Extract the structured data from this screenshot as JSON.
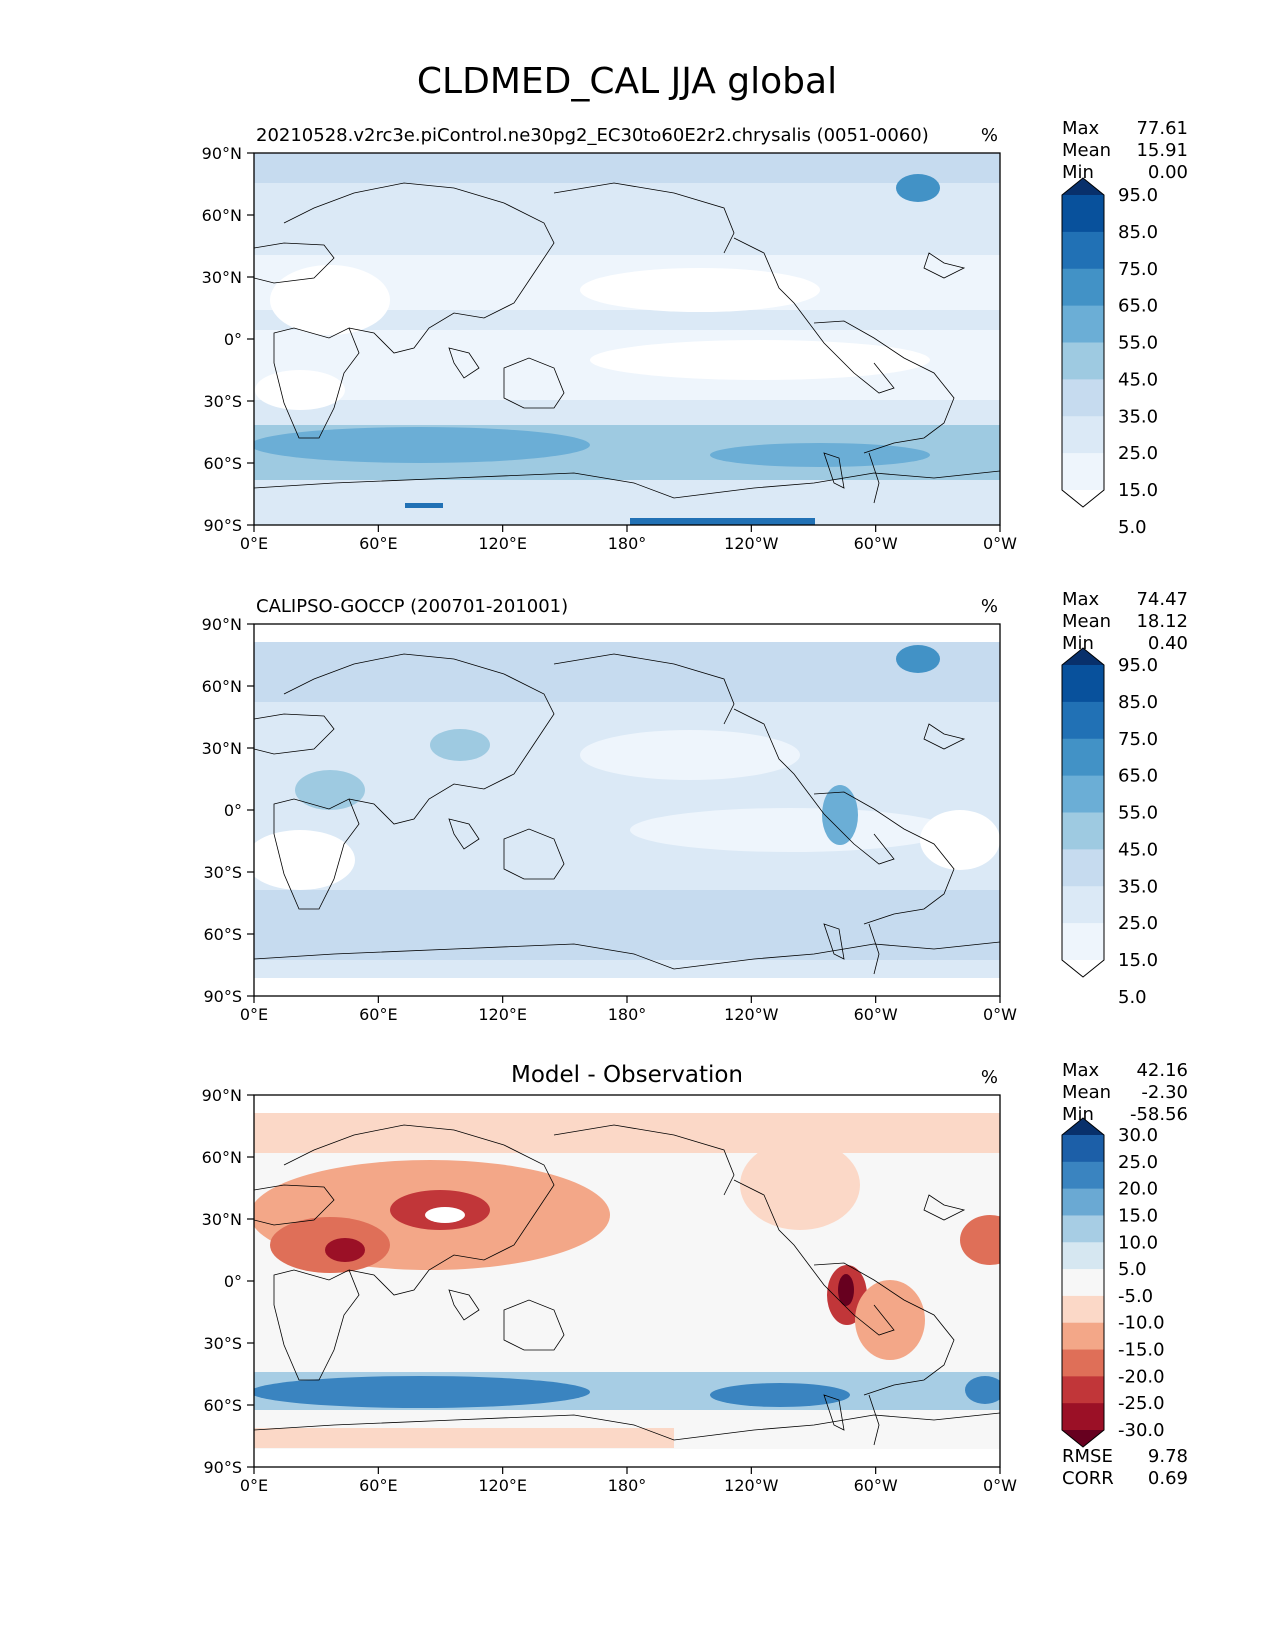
{
  "title": "CLDMED_CAL JJA global",
  "x_ticks": [
    "0°E",
    "60°E",
    "120°E",
    "180°",
    "120°W",
    "60°W",
    "0°W"
  ],
  "y_ticks": [
    "90°N",
    "60°N",
    "30°N",
    "0°",
    "30°S",
    "60°S",
    "90°S"
  ],
  "chart_data": [
    {
      "type": "heatmap",
      "id": "model",
      "title": "",
      "subtitle_left": "20210528.v2rc3e.piControl.ne30pg2_EC30to60E2r2.chrysalis (0051-0060)",
      "units": "%",
      "xlim": [
        0,
        360
      ],
      "ylim": [
        -90,
        90
      ],
      "stats": [
        {
          "label": "Max",
          "value": "77.61"
        },
        {
          "label": "Mean",
          "value": "15.91"
        },
        {
          "label": "Min",
          "value": "0.00"
        }
      ],
      "colorbar": {
        "levels": [
          "95.0",
          "85.0",
          "75.0",
          "65.0",
          "55.0",
          "45.0",
          "35.0",
          "25.0",
          "15.0",
          "5.0"
        ],
        "colors": [
          "#08306b",
          "#08519c",
          "#2171b5",
          "#4292c6",
          "#6baed6",
          "#9ecae1",
          "#c6dbef",
          "#dbe9f6",
          "#eef5fc",
          "#ffffff"
        ]
      }
    },
    {
      "type": "heatmap",
      "id": "obs",
      "title": "",
      "subtitle_left": "CALIPSO-GOCCP (200701-201001)",
      "units": "%",
      "xlim": [
        0,
        360
      ],
      "ylim": [
        -90,
        90
      ],
      "stats": [
        {
          "label": "Max",
          "value": "74.47"
        },
        {
          "label": "Mean",
          "value": "18.12"
        },
        {
          "label": "Min",
          "value": "0.40"
        }
      ],
      "colorbar": {
        "levels": [
          "95.0",
          "85.0",
          "75.0",
          "65.0",
          "55.0",
          "45.0",
          "35.0",
          "25.0",
          "15.0",
          "5.0"
        ],
        "colors": [
          "#08306b",
          "#08519c",
          "#2171b5",
          "#4292c6",
          "#6baed6",
          "#9ecae1",
          "#c6dbef",
          "#dbe9f6",
          "#eef5fc",
          "#ffffff"
        ]
      }
    },
    {
      "type": "heatmap",
      "id": "diff",
      "title": "Model - Observation",
      "subtitle_left": "",
      "units": "%",
      "xlim": [
        0,
        360
      ],
      "ylim": [
        -90,
        90
      ],
      "stats": [
        {
          "label": "Max",
          "value": "42.16"
        },
        {
          "label": "Mean",
          "value": "-2.30"
        },
        {
          "label": "Min",
          "value": "-58.56"
        }
      ],
      "colorbar": {
        "levels": [
          "30.0",
          "25.0",
          "20.0",
          "15.0",
          "10.0",
          "5.0",
          "-5.0",
          "-10.0",
          "-15.0",
          "-20.0",
          "-25.0",
          "-30.0"
        ],
        "colors": [
          "#08306b",
          "#1c5fa8",
          "#3a84c0",
          "#6aa9d3",
          "#a7cde4",
          "#d6e7f1",
          "#f7f7f7",
          "#fbd8c7",
          "#f3a788",
          "#df6f58",
          "#c13639",
          "#9b1026",
          "#67001f"
        ]
      },
      "bottom_stats": [
        {
          "label": "RMSE",
          "value": "9.78"
        },
        {
          "label": "CORR",
          "value": "0.69"
        }
      ]
    }
  ]
}
